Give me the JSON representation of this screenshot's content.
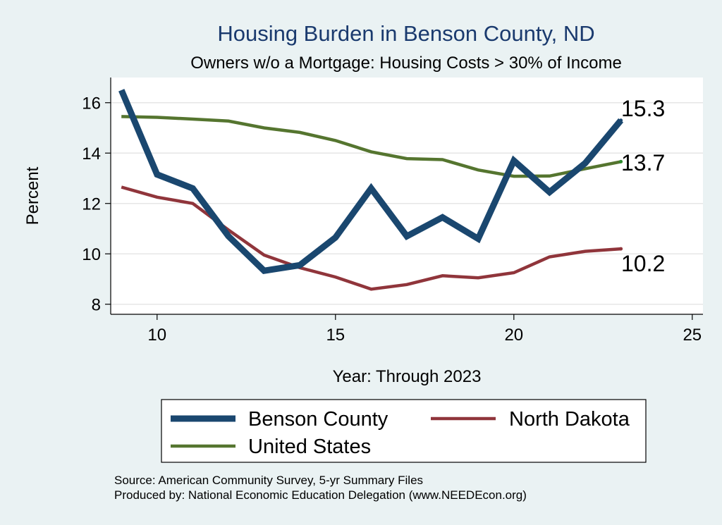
{
  "chart_data": {
    "type": "line",
    "title": "Housing Burden in Benson County, ND",
    "subtitle": "Owners w/o a Mortgage: Housing Costs > 30% of Income",
    "xlabel": "Year: Through 2023",
    "ylabel": "Percent",
    "xlim": [
      8.7,
      25.3
    ],
    "ylim": [
      7.6,
      17.0
    ],
    "x_ticks": [
      10,
      15,
      20,
      25
    ],
    "y_ticks": [
      8,
      10,
      12,
      14,
      16
    ],
    "grid": true,
    "legend_position": "bottom",
    "series": [
      {
        "name": "Benson County",
        "color": "#1a476f",
        "x": [
          9,
          10,
          11,
          12,
          13,
          14,
          15,
          16,
          17,
          18,
          19,
          20,
          21,
          22,
          23
        ],
        "values": [
          16.5,
          13.15,
          12.6,
          10.7,
          9.33,
          9.55,
          10.65,
          12.6,
          10.7,
          11.45,
          10.6,
          13.7,
          12.45,
          13.6,
          15.3
        ],
        "end_label": "15.3"
      },
      {
        "name": "North Dakota",
        "color": "#90353b",
        "x": [
          9,
          10,
          11,
          12,
          13,
          14,
          15,
          16,
          17,
          18,
          19,
          20,
          21,
          22,
          23
        ],
        "values": [
          12.65,
          12.25,
          12.0,
          10.95,
          9.95,
          9.45,
          9.08,
          8.6,
          8.78,
          9.13,
          9.05,
          9.25,
          9.88,
          10.1,
          10.2
        ],
        "end_label": "10.2"
      },
      {
        "name": "United States",
        "color": "#55752f",
        "x": [
          9,
          10,
          11,
          12,
          13,
          14,
          15,
          16,
          17,
          18,
          19,
          20,
          21,
          22,
          23
        ],
        "values": [
          15.45,
          15.42,
          15.35,
          15.27,
          15.0,
          14.82,
          14.5,
          14.05,
          13.78,
          13.74,
          13.33,
          13.08,
          13.09,
          13.38,
          13.66
        ],
        "end_label": "13.7"
      }
    ],
    "source_lines": [
      "Source: American Community Survey, 5-yr Summary Files",
      "Produced by: National Economic Education Delegation (www.NEEDEcon.org)"
    ]
  }
}
